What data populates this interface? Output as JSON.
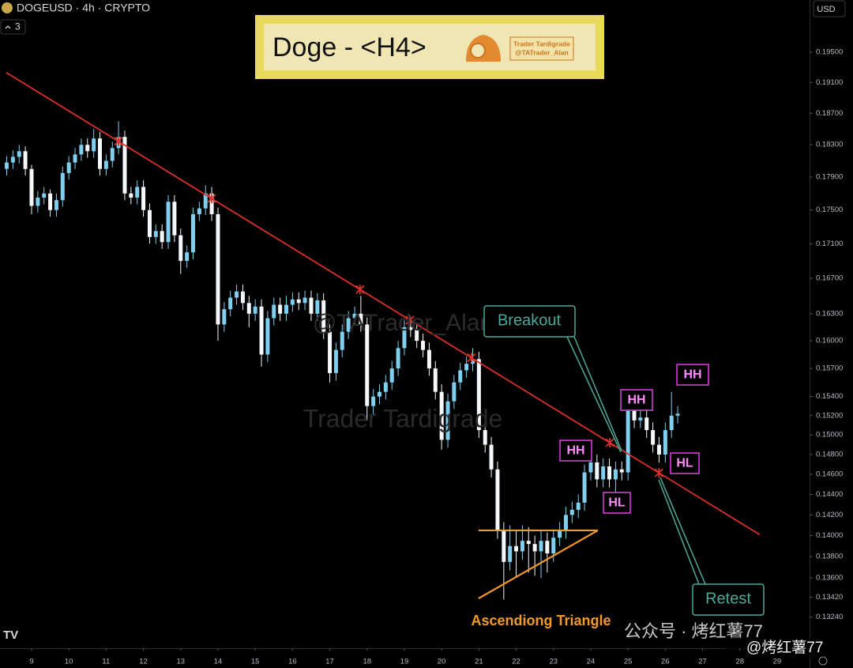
{
  "header": {
    "symbol": "DOGEUSD · 4h · CRYPTO",
    "indicator_count": "3",
    "currency": "USD"
  },
  "title_box": {
    "title": "Doge - <H4>",
    "author": "Trader Tardigrade",
    "handle": "@TATrader_Alan"
  },
  "watermarks": {
    "handle": "@TATrader_Alan",
    "author": "Trader Tardigrade",
    "channel": "公众号 · 烤红薯77",
    "account": "@烤红薯77"
  },
  "chart_data": {
    "type": "candlestick",
    "x": [
      8.333,
      8.5,
      8.667,
      8.833,
      9,
      9.167,
      9.333,
      9.5,
      9.667,
      9.833,
      10,
      10.167,
      10.333,
      10.5,
      10.667,
      10.833,
      11,
      11.167,
      11.333,
      11.5,
      11.667,
      11.833,
      12,
      12.167,
      12.333,
      12.5,
      12.667,
      12.833,
      13,
      13.167,
      13.333,
      13.5,
      13.667,
      13.833,
      14,
      14.167,
      14.333,
      14.5,
      14.667,
      14.833,
      15,
      15.167,
      15.333,
      15.5,
      15.667,
      15.833,
      16,
      16.167,
      16.333,
      16.5,
      16.667,
      16.833,
      17,
      17.167,
      17.333,
      17.5,
      17.667,
      17.833,
      18,
      18.167,
      18.333,
      18.5,
      18.667,
      18.833,
      19,
      19.167,
      19.333,
      19.5,
      19.667,
      19.833,
      20,
      20.167,
      20.333,
      20.5,
      20.667,
      20.833,
      21,
      21.167,
      21.333,
      21.5,
      21.667,
      21.833,
      22,
      22.167,
      22.333,
      22.5,
      22.667,
      22.833,
      23,
      23.167,
      23.333,
      23.5,
      23.667,
      23.833,
      24,
      24.167,
      24.333,
      24.5,
      24.667,
      24.833,
      25,
      25.167,
      25.333,
      25.5,
      25.667,
      25.833,
      26,
      26.167,
      26.333
    ],
    "open": [
      0.18,
      0.1808,
      0.1815,
      0.1822,
      0.18,
      0.1755,
      0.1765,
      0.177,
      0.175,
      0.1762,
      0.1795,
      0.1808,
      0.1818,
      0.183,
      0.1822,
      0.1838,
      0.18,
      0.181,
      0.1826,
      0.184,
      0.177,
      0.1765,
      0.1778,
      0.175,
      0.1718,
      0.1725,
      0.1712,
      0.176,
      0.172,
      0.169,
      0.17,
      0.1745,
      0.1752,
      0.177,
      0.1745,
      0.1618,
      0.1635,
      0.1648,
      0.1655,
      0.1642,
      0.163,
      0.1638,
      0.1585,
      0.1625,
      0.164,
      0.163,
      0.164,
      0.1646,
      0.1642,
      0.1648,
      0.163,
      0.1645,
      0.161,
      0.1565,
      0.159,
      0.161,
      0.1625,
      0.163,
      0.1618,
      0.153,
      0.154,
      0.1545,
      0.1555,
      0.157,
      0.1592,
      0.1615,
      0.1612,
      0.16,
      0.159,
      0.157,
      0.1545,
      0.1495,
      0.1535,
      0.1555,
      0.1568,
      0.1575,
      0.158,
      0.1505,
      0.149,
      0.1465,
      0.1405,
      0.1375,
      0.139,
      0.1385,
      0.1395,
      0.1392,
      0.1385,
      0.1395,
      0.1383,
      0.1398,
      0.1405,
      0.142,
      0.1425,
      0.1432,
      0.1462,
      0.1472,
      0.1455,
      0.1468,
      0.1455,
      0.1465,
      0.1462,
      0.1525,
      0.1515,
      0.1518,
      0.1505,
      0.149,
      0.148,
      0.1505,
      0.152
    ],
    "high": [
      0.1816,
      0.1823,
      0.183,
      0.1828,
      0.1805,
      0.1773,
      0.1778,
      0.1775,
      0.177,
      0.1803,
      0.1816,
      0.1826,
      0.1838,
      0.1838,
      0.185,
      0.1846,
      0.1818,
      0.1834,
      0.186,
      0.1848,
      0.1778,
      0.1786,
      0.1786,
      0.1758,
      0.1733,
      0.1733,
      0.1768,
      0.1768,
      0.1728,
      0.1708,
      0.1753,
      0.176,
      0.178,
      0.1778,
      0.1753,
      0.1643,
      0.1656,
      0.1663,
      0.1663,
      0.165,
      0.1646,
      0.1646,
      0.1633,
      0.1648,
      0.1648,
      0.165,
      0.1654,
      0.1654,
      0.1656,
      0.1656,
      0.1653,
      0.1653,
      0.1618,
      0.1598,
      0.1618,
      0.1633,
      0.1638,
      0.165,
      0.1626,
      0.1548,
      0.1553,
      0.1563,
      0.1578,
      0.16,
      0.1623,
      0.1625,
      0.162,
      0.1608,
      0.1598,
      0.1578,
      0.1553,
      0.1543,
      0.1563,
      0.1576,
      0.1583,
      0.1592,
      0.1588,
      0.1513,
      0.1498,
      0.1473,
      0.1413,
      0.141,
      0.1405,
      0.141,
      0.1408,
      0.14,
      0.1405,
      0.1403,
      0.1406,
      0.1413,
      0.1428,
      0.1433,
      0.144,
      0.147,
      0.148,
      0.148,
      0.1476,
      0.1476,
      0.1473,
      0.1473,
      0.1533,
      0.1533,
      0.1526,
      0.1526,
      0.1513,
      0.1498,
      0.1513,
      0.1545,
      0.153
    ],
    "low": [
      0.1792,
      0.18,
      0.1807,
      0.1792,
      0.1745,
      0.1747,
      0.1757,
      0.1742,
      0.1742,
      0.1754,
      0.1787,
      0.18,
      0.181,
      0.1814,
      0.1814,
      0.1792,
      0.1792,
      0.1802,
      0.1818,
      0.1762,
      0.1757,
      0.1757,
      0.1742,
      0.171,
      0.171,
      0.1704,
      0.1704,
      0.1712,
      0.1675,
      0.1682,
      0.1692,
      0.1737,
      0.1744,
      0.1737,
      0.16,
      0.161,
      0.1627,
      0.164,
      0.1634,
      0.1615,
      0.1622,
      0.1572,
      0.1577,
      0.1617,
      0.1622,
      0.1622,
      0.1632,
      0.1634,
      0.1634,
      0.1622,
      0.1622,
      0.1602,
      0.1555,
      0.1557,
      0.1582,
      0.1602,
      0.1617,
      0.161,
      0.1515,
      0.152,
      0.1532,
      0.1537,
      0.1547,
      0.1562,
      0.1584,
      0.1604,
      0.1592,
      0.1582,
      0.1562,
      0.1537,
      0.1485,
      0.1487,
      0.1527,
      0.1547,
      0.156,
      0.1567,
      0.1497,
      0.1482,
      0.1457,
      0.1397,
      0.134,
      0.1367,
      0.136,
      0.1377,
      0.1365,
      0.1362,
      0.136,
      0.1365,
      0.1375,
      0.139,
      0.1397,
      0.1412,
      0.1417,
      0.1424,
      0.1454,
      0.1447,
      0.1447,
      0.1447,
      0.144,
      0.1454,
      0.1454,
      0.1507,
      0.1507,
      0.1497,
      0.1482,
      0.1472,
      0.1472,
      0.1497,
      0.1512
    ],
    "close": [
      0.1808,
      0.1815,
      0.1822,
      0.18,
      0.1755,
      0.1765,
      0.177,
      0.175,
      0.1762,
      0.1795,
      0.1808,
      0.1818,
      0.183,
      0.1822,
      0.1838,
      0.18,
      0.181,
      0.1826,
      0.184,
      0.177,
      0.1765,
      0.1778,
      0.175,
      0.1718,
      0.1725,
      0.1712,
      0.176,
      0.172,
      0.169,
      0.17,
      0.1745,
      0.1752,
      0.177,
      0.1745,
      0.1618,
      0.1635,
      0.1648,
      0.1655,
      0.1642,
      0.163,
      0.1638,
      0.1585,
      0.1625,
      0.164,
      0.163,
      0.164,
      0.1646,
      0.1642,
      0.1648,
      0.163,
      0.1645,
      0.161,
      0.1565,
      0.159,
      0.161,
      0.1625,
      0.163,
      0.1618,
      0.153,
      0.154,
      0.1545,
      0.1555,
      0.157,
      0.1592,
      0.1615,
      0.1612,
      0.16,
      0.159,
      0.157,
      0.1545,
      0.1495,
      0.1535,
      0.1555,
      0.1568,
      0.1575,
      0.158,
      0.1505,
      0.149,
      0.1465,
      0.1405,
      0.1375,
      0.139,
      0.1385,
      0.1395,
      0.1392,
      0.1385,
      0.1395,
      0.1383,
      0.1398,
      0.1405,
      0.142,
      0.1425,
      0.1432,
      0.1462,
      0.1472,
      0.1455,
      0.1468,
      0.1455,
      0.1465,
      0.1462,
      0.1525,
      0.1515,
      0.1518,
      0.1505,
      0.149,
      0.148,
      0.1505,
      0.152,
      0.1522
    ],
    "up_color": "#7fcfee",
    "down_color": "#f4f8fa",
    "log_scale": true,
    "xlim": [
      8.153,
      29.87
    ],
    "xticks": [
      9,
      10,
      11,
      12,
      13,
      14,
      15,
      16,
      17,
      18,
      19,
      20,
      21,
      22,
      23,
      24,
      25,
      26,
      27,
      28,
      29
    ],
    "ylim": [
      0.1296,
      0.2021
    ],
    "yticks": [
      {
        "value": 0.195,
        "label": "0.19500"
      },
      {
        "value": 0.191,
        "label": "0.19100"
      },
      {
        "value": 0.187,
        "label": "0.18700"
      },
      {
        "value": 0.183,
        "label": "0.18300"
      },
      {
        "value": 0.179,
        "label": "0.17900"
      },
      {
        "value": 0.175,
        "label": "0.17500"
      },
      {
        "value": 0.171,
        "label": "0.17100"
      },
      {
        "value": 0.167,
        "label": "0.16700"
      },
      {
        "value": 0.163,
        "label": "0.16300"
      },
      {
        "value": 0.16,
        "label": "0.16000"
      },
      {
        "value": 0.157,
        "label": "0.15700"
      },
      {
        "value": 0.154,
        "label": "0.15400"
      },
      {
        "value": 0.152,
        "label": "0.15200"
      },
      {
        "value": 0.15,
        "label": "0.15000"
      },
      {
        "value": 0.148,
        "label": "0.14800"
      },
      {
        "value": 0.146,
        "label": "0.14600"
      },
      {
        "value": 0.144,
        "label": "0.14400"
      },
      {
        "value": 0.142,
        "label": "0.14200"
      },
      {
        "value": 0.14,
        "label": "0.14000"
      },
      {
        "value": 0.138,
        "label": "0.13800"
      },
      {
        "value": 0.136,
        "label": "0.13600"
      },
      {
        "value": 0.1342,
        "label": "0.13420"
      },
      {
        "value": 0.1324,
        "label": "0.13240"
      }
    ],
    "trendline": {
      "x": [
        8.32,
        28.53
      ],
      "y": [
        0.1923,
        0.1401
      ],
      "color": "#d8312c"
    },
    "touches": [
      11.33,
      13.83,
      17.81,
      19.15,
      20.8,
      24.51,
      25.83
    ],
    "triangle": {
      "x": [
        20.99,
        24.19
      ],
      "resistance": 0.1405,
      "support": [
        0.1341,
        0.1405
      ],
      "color": "#f39a2b"
    },
    "annotations": {
      "breakout": "Breakout",
      "retest": "Retest",
      "pattern": "Ascendiong Triangle",
      "labels": [
        "HH",
        "HL",
        "HH",
        "HL",
        "HH"
      ]
    }
  }
}
